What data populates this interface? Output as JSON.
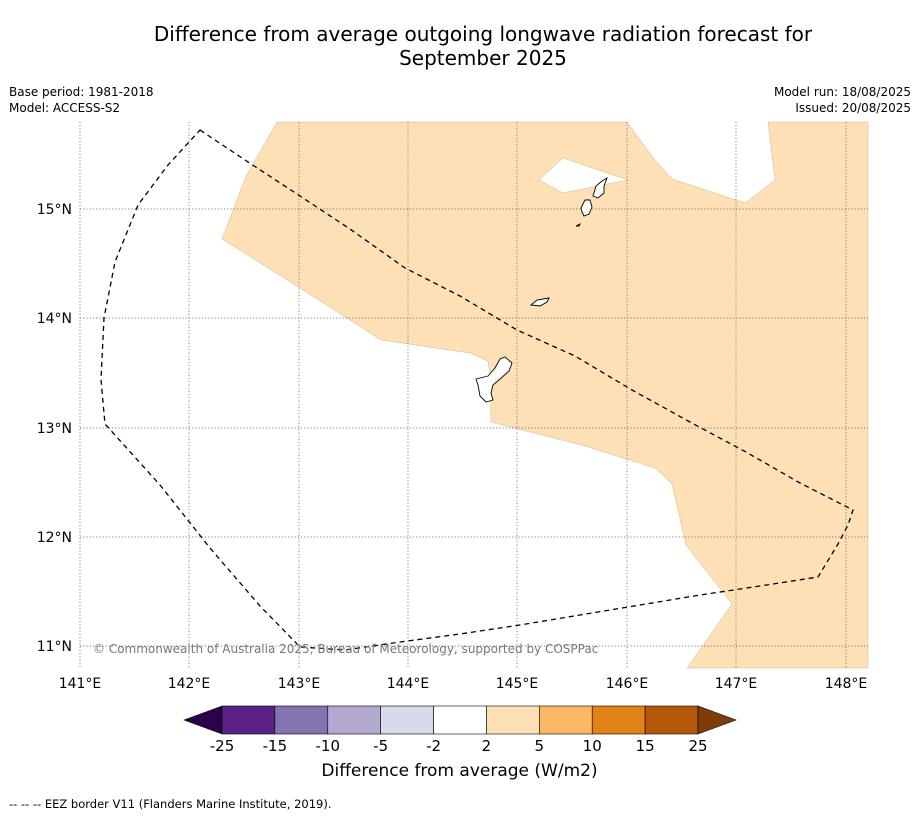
{
  "title_line1": "Difference from average outgoing longwave radiation forecast for",
  "title_line2": "September 2025",
  "base_period": "Base period: 1981-2018",
  "model": "Model: ACCESS-S2",
  "model_run": "Model run: 18/08/2025",
  "issued": "Issued: 20/08/2025",
  "copyright": "© Commonwealth of Australia 2025, Bureau of Meteorology, supported by COSPPac",
  "colorbar": {
    "title": "Difference from average (W/m2)",
    "ticks": [
      "-25",
      "-15",
      "-10",
      "-5",
      "-2",
      "2",
      "5",
      "10",
      "15",
      "25"
    ],
    "bins": [
      {
        "color": "#5a2182"
      },
      {
        "color": "#8574b1"
      },
      {
        "color": "#b3a8d2"
      },
      {
        "color": "#d9d9ec"
      },
      {
        "color": "#ffffff"
      },
      {
        "color": "#fde0b6"
      },
      {
        "color": "#fdb863"
      },
      {
        "color": "#e08214"
      },
      {
        "color": "#b35806"
      }
    ],
    "under_color": "#2d004b",
    "over_color": "#7f3b08"
  },
  "footer": "-- -- -- EEZ border V11 (Flanders Marine Institute, 2019).",
  "map": {
    "lon_labels": [
      "141°E",
      "142°E",
      "143°E",
      "144°E",
      "145°E",
      "146°E",
      "147°E",
      "148°E"
    ],
    "lat_labels": [
      "15°N",
      "14°N",
      "13°N",
      "12°N",
      "11°N"
    ],
    "shading_color": "#fde0b6"
  }
}
